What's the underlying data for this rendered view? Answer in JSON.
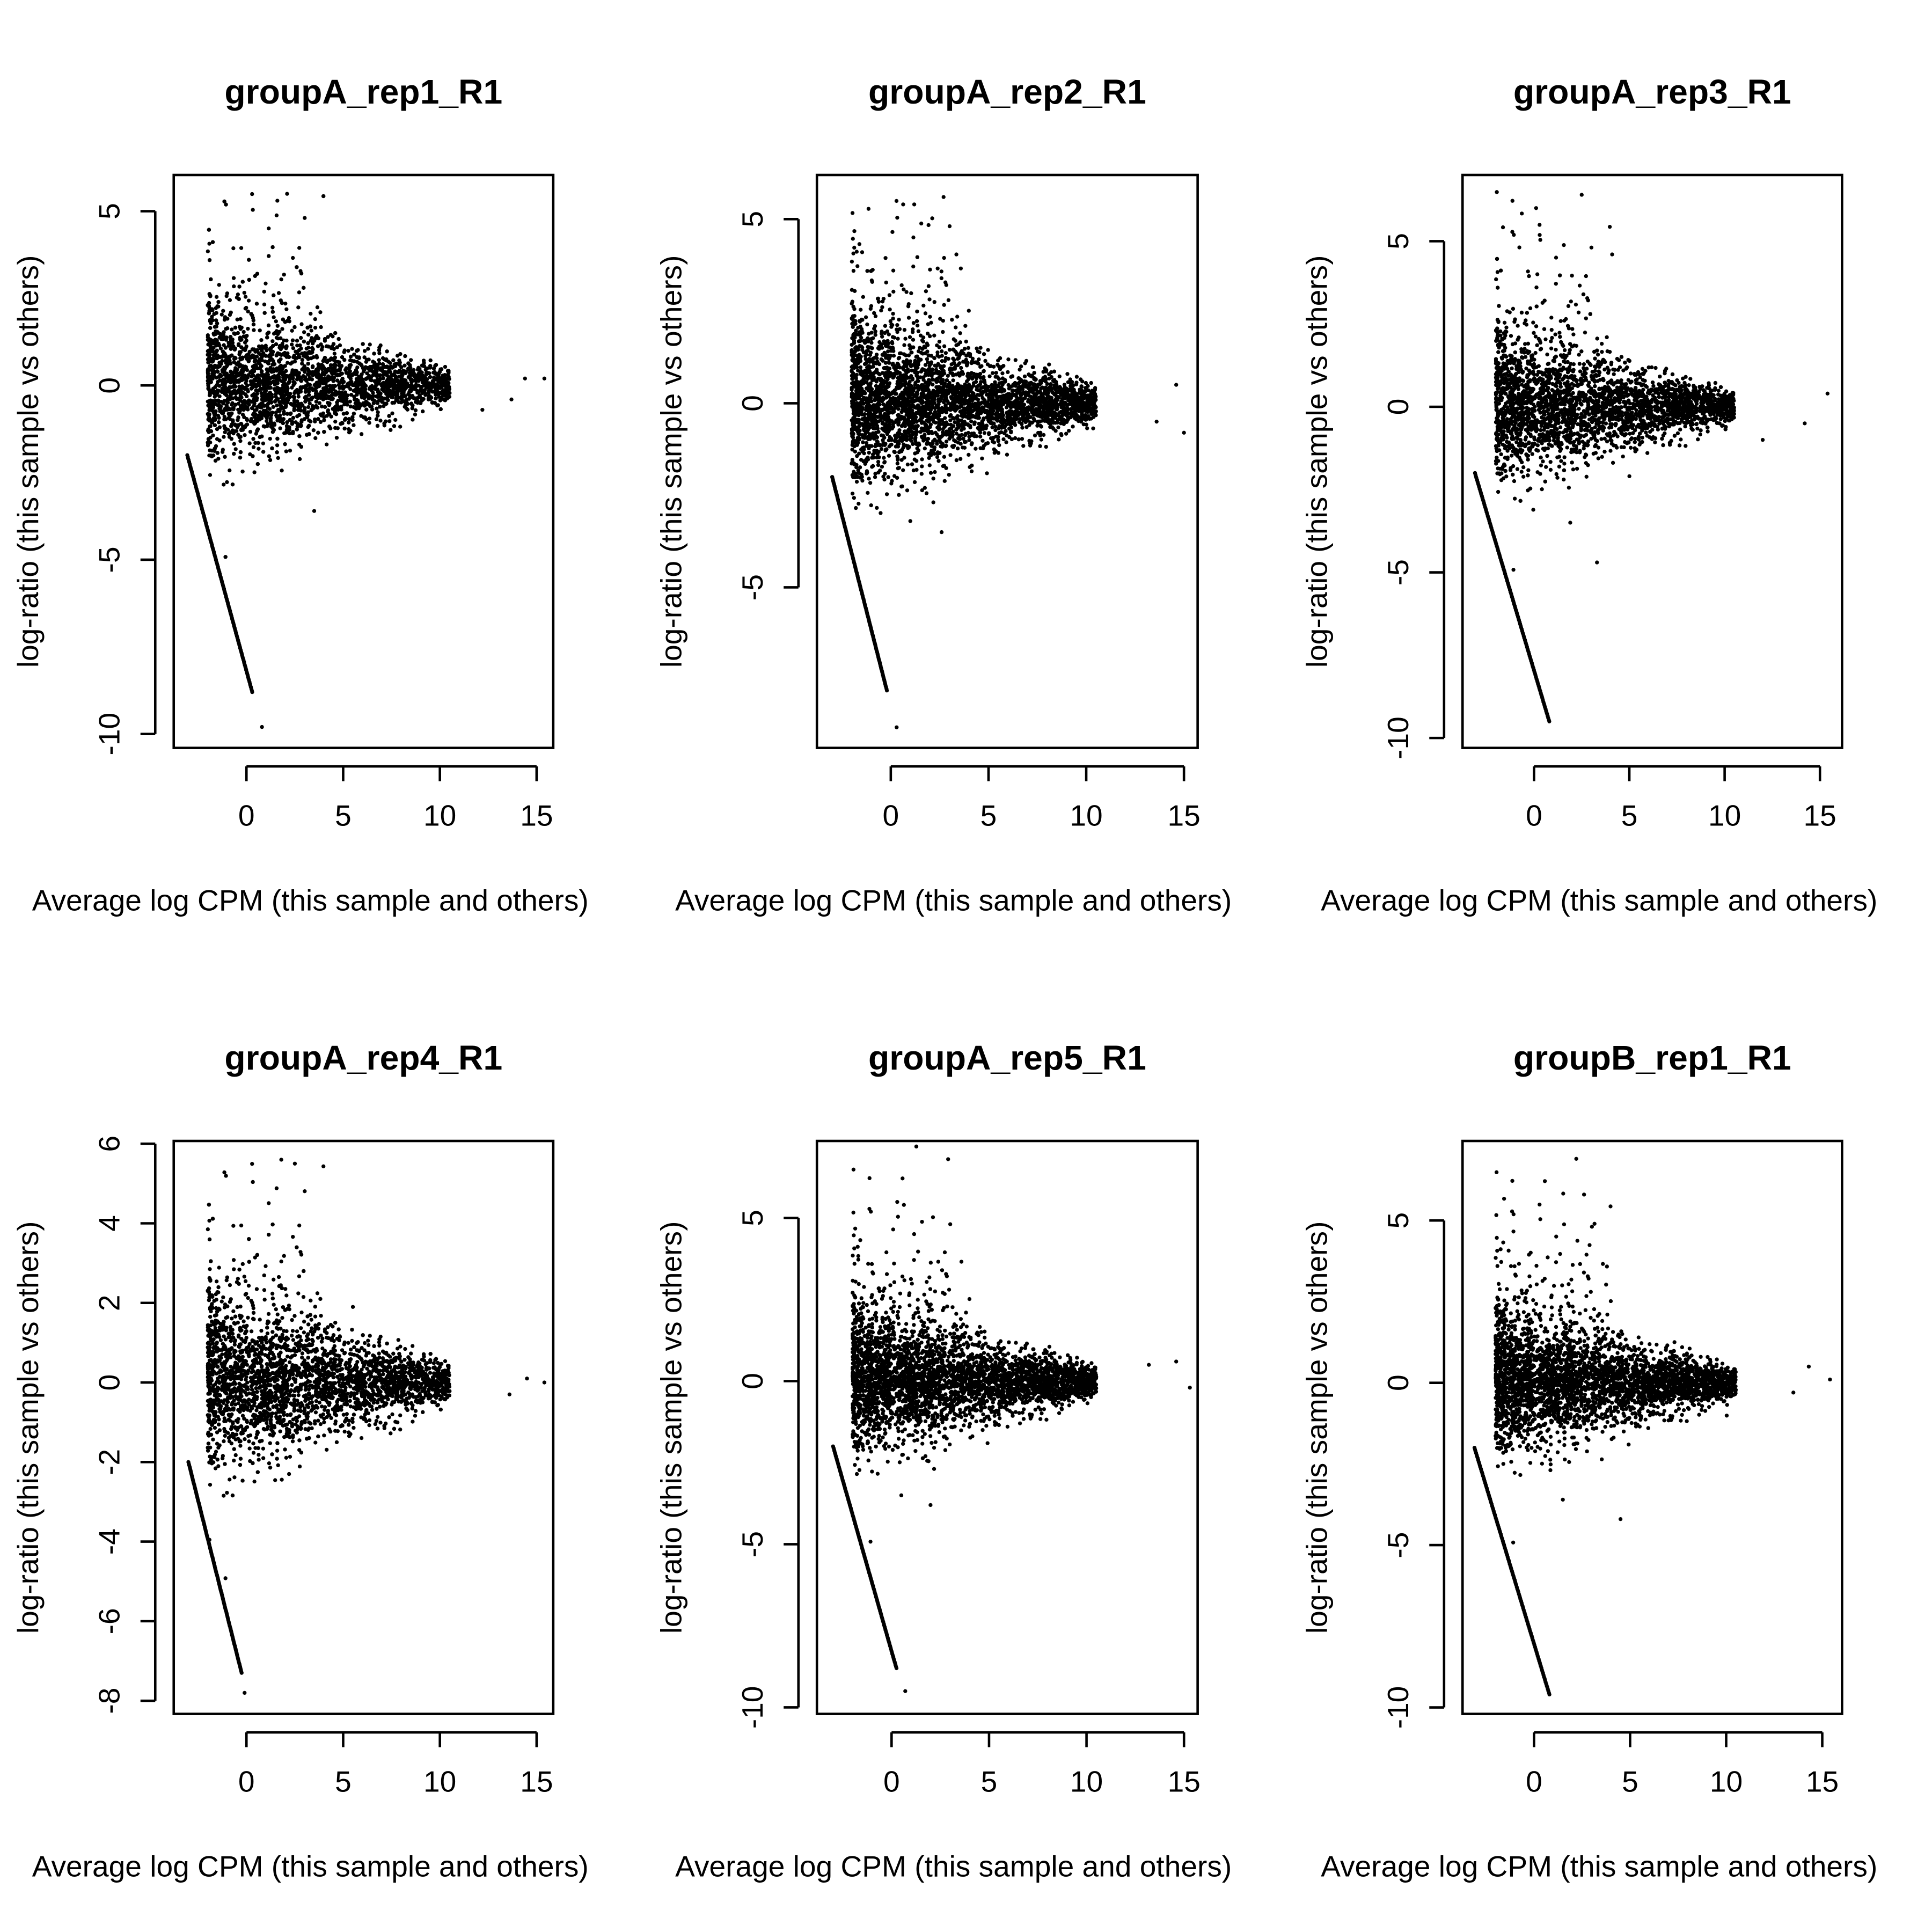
{
  "chart_data": [
    {
      "type": "scatter",
      "title": "groupA_rep1_R1",
      "xlabel": "Average log CPM (this sample and others)",
      "ylabel": "log-ratio (this sample vs others)",
      "xlim": [
        -3.76,
        15.86
      ],
      "ylim": [
        -10.4,
        6.04
      ],
      "xticks": [
        0,
        5,
        10,
        15
      ],
      "yticks": [
        -10,
        -5,
        0,
        5
      ],
      "grid": false,
      "zero_count_line": [
        [
          -3.06,
          -2
        ],
        [
          0.3,
          -8.8
        ]
      ],
      "outliers": [
        [
          0.8,
          -9.8
        ],
        [
          2.1,
          5.5
        ],
        [
          1.6,
          5.3
        ],
        [
          13.7,
          -0.4
        ],
        [
          15.4,
          0.2
        ],
        [
          14.4,
          0.2
        ],
        [
          12.2,
          -0.7
        ],
        [
          3.5,
          -3.6
        ]
      ]
    },
    {
      "type": "scatter",
      "title": "groupA_rep2_R1",
      "xlabel": "Average log CPM (this sample and others)",
      "ylabel": "log-ratio (this sample vs others)",
      "xlim": [
        -3.78,
        15.7
      ],
      "ylim": [
        -9.36,
        6.2
      ],
      "xticks": [
        0,
        5,
        10,
        15
      ],
      "yticks": [
        -5,
        0,
        5
      ],
      "grid": false,
      "zero_count_line": [
        [
          -3.0,
          -2
        ],
        [
          -0.2,
          -7.8
        ]
      ],
      "outliers": [
        [
          0.3,
          -8.8
        ],
        [
          2.7,
          5.6
        ],
        [
          1.2,
          5.4
        ],
        [
          15.0,
          -0.8
        ],
        [
          14.6,
          0.5
        ],
        [
          13.6,
          -0.5
        ],
        [
          2.6,
          -3.5
        ],
        [
          1.0,
          -3.2
        ]
      ]
    },
    {
      "type": "scatter",
      "title": "groupA_rep3_R1",
      "xlabel": "Average log CPM (this sample and others)",
      "ylabel": "log-ratio (this sample vs others)",
      "xlim": [
        -3.75,
        16.16
      ],
      "ylim": [
        -10.3,
        7.0
      ],
      "xticks": [
        0,
        5,
        10,
        15
      ],
      "yticks": [
        -10,
        -5,
        0,
        5
      ],
      "grid": false,
      "zero_count_line": [
        [
          -3.1,
          -2
        ],
        [
          0.8,
          -9.5
        ]
      ],
      "outliers": [
        [
          2.5,
          6.4
        ],
        [
          4.1,
          4.6
        ],
        [
          15.4,
          0.4
        ],
        [
          14.2,
          -0.5
        ],
        [
          12.0,
          -1.0
        ],
        [
          3.3,
          -4.7
        ],
        [
          1.9,
          -3.5
        ]
      ]
    },
    {
      "type": "scatter",
      "title": "groupA_rep4_R1",
      "xlabel": "Average log CPM (this sample and others)",
      "ylabel": "log-ratio (this sample vs others)",
      "xlim": [
        -3.76,
        15.86
      ],
      "ylim": [
        -8.33,
        6.07
      ],
      "xticks": [
        0,
        5,
        10,
        15
      ],
      "yticks": [
        -8,
        -6,
        -4,
        -2,
        0,
        2,
        4,
        6
      ],
      "grid": false,
      "zero_count_line": [
        [
          -3.0,
          -2
        ],
        [
          -0.25,
          -7.3
        ]
      ],
      "outliers": [
        [
          -0.1,
          -7.8
        ],
        [
          1.8,
          5.6
        ],
        [
          2.5,
          5.5
        ],
        [
          15.4,
          0.0
        ],
        [
          14.5,
          0.1
        ],
        [
          13.6,
          -0.3
        ],
        [
          5.5,
          1.9
        ],
        [
          2.2,
          -2.3
        ]
      ]
    },
    {
      "type": "scatter",
      "title": "groupA_rep5_R1",
      "xlabel": "Average log CPM (this sample and others)",
      "ylabel": "log-ratio (this sample vs others)",
      "xlim": [
        -3.83,
        15.7
      ],
      "ylim": [
        -10.2,
        7.36
      ],
      "xticks": [
        0,
        5,
        10,
        15
      ],
      "yticks": [
        -10,
        -5,
        0,
        5
      ],
      "grid": false,
      "zero_count_line": [
        [
          -3.0,
          -2
        ],
        [
          0.25,
          -8.8
        ]
      ],
      "outliers": [
        [
          0.7,
          -9.5
        ],
        [
          2.9,
          6.8
        ],
        [
          15.3,
          -0.2
        ],
        [
          14.6,
          0.6
        ],
        [
          13.2,
          0.5
        ],
        [
          2.0,
          -3.8
        ],
        [
          0.5,
          -3.5
        ]
      ]
    },
    {
      "type": "scatter",
      "title": "groupB_rep1_R1",
      "xlabel": "Average log CPM (this sample and others)",
      "ylabel": "log-ratio (this sample vs others)",
      "xlim": [
        -3.72,
        16.03
      ],
      "ylim": [
        -10.2,
        7.45
      ],
      "xticks": [
        0,
        5,
        10,
        15
      ],
      "yticks": [
        -10,
        -5,
        0,
        5
      ],
      "grid": false,
      "zero_count_line": [
        [
          -3.1,
          -2
        ],
        [
          0.8,
          -9.6
        ]
      ],
      "outliers": [
        [
          2.2,
          6.9
        ],
        [
          2.6,
          5.8
        ],
        [
          15.4,
          0.1
        ],
        [
          14.3,
          0.5
        ],
        [
          13.5,
          -0.3
        ],
        [
          4.5,
          -4.2
        ],
        [
          1.5,
          -3.6
        ]
      ]
    }
  ]
}
